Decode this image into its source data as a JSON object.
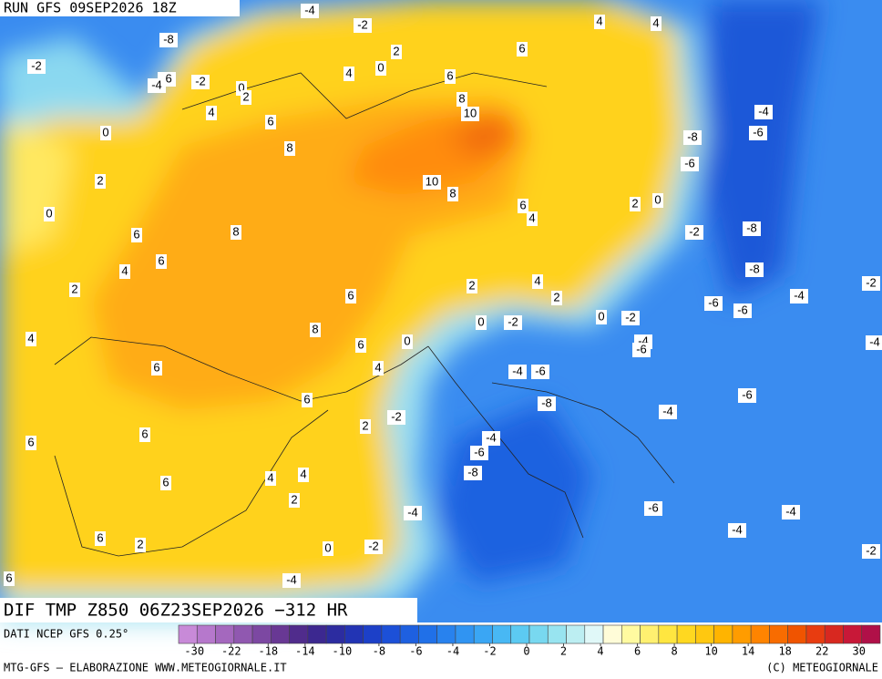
{
  "header": {
    "run": "RUN GFS 09SEP2026 18Z"
  },
  "title": "DIF TMP Z850 06Z23SEP2026 −312 HR",
  "source": "DATI NCEP GFS 0.25°",
  "footer": {
    "left": "MTG-GFS — ELABORAZIONE WWW.METEOGIORNALE.IT",
    "right": "(C) METEOGIORNALE"
  },
  "colorbar": {
    "colors": [
      "#c88ad8",
      "#b678cc",
      "#a468be",
      "#9058b0",
      "#7c48a2",
      "#683894",
      "#502c8c",
      "#3c2890",
      "#2c2ca0",
      "#2234b4",
      "#1c40c8",
      "#1c50d8",
      "#1e60e0",
      "#2070e8",
      "#2882ee",
      "#3094f2",
      "#3aa6f4",
      "#48b8f4",
      "#5ccaf2",
      "#78d8f0",
      "#98e4f0",
      "#bceef2",
      "#e0f8f8",
      "#fffcd8",
      "#fffaa0",
      "#fff070",
      "#ffe640",
      "#ffd820",
      "#ffc810",
      "#ffb400",
      "#ff9c00",
      "#ff8400",
      "#f86c00",
      "#f05400",
      "#e83c10",
      "#d82820",
      "#c81838",
      "#b01048"
    ],
    "ticks": [
      -30,
      -22,
      -18,
      -14,
      -10,
      -8,
      -6,
      -4,
      -2,
      0,
      2,
      4,
      6,
      8,
      10,
      14,
      18,
      22,
      30
    ]
  },
  "contour_labels": [
    -4,
    -2,
    4,
    4,
    -8,
    2,
    6,
    -2,
    -6,
    4,
    0,
    6,
    -4,
    -2,
    0,
    2,
    8,
    4,
    10,
    -4,
    6,
    0,
    -8,
    -6,
    8,
    -6,
    2,
    10,
    8,
    6,
    2,
    0,
    0,
    4,
    8,
    -2,
    -8,
    6,
    6,
    4,
    -8,
    4,
    2,
    2,
    -4,
    -2,
    6,
    2,
    -6,
    -6,
    0,
    -2,
    0,
    -2,
    8,
    0,
    6,
    -4,
    -6,
    -4,
    4,
    4,
    6,
    -4,
    -6,
    6,
    -8,
    -6,
    -4,
    2,
    -2,
    6,
    6,
    -4,
    -6,
    -8,
    4,
    4,
    6,
    2,
    -4,
    -6,
    -4,
    -4,
    6,
    2,
    0,
    -2,
    -2,
    6,
    -4
  ]
}
